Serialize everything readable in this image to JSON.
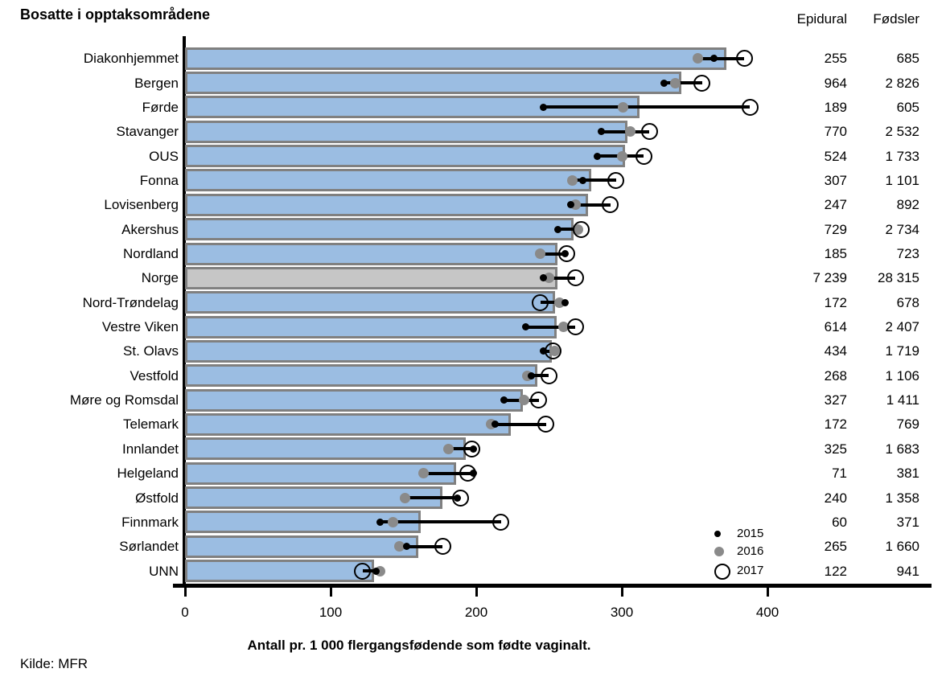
{
  "title": "Bosatte i opptaksområdene",
  "table": {
    "epidural_header": "Epidural",
    "fodsler_header": "Fødsler"
  },
  "source": "Kilde: MFR",
  "colors": {
    "bar_fill": "#9bbde2",
    "bar_border": "#808080",
    "norge_bar_fill": "#c6c6c6",
    "marker_2015": "#000000",
    "marker_2016": "#8a8a8a",
    "marker_2017_ring": "#000000",
    "axis": "#000000"
  },
  "chart_data": {
    "type": "bar",
    "orientation": "horizontal",
    "title": "Bosatte i opptaksområdene",
    "xlabel": "Antall pr. 1 000 flergangsfødende som fødte vaginalt.",
    "x_ticks": [
      0,
      100,
      200,
      300,
      400
    ],
    "xlim": [
      0,
      512
    ],
    "grid": false,
    "legend_position": "inside-bottom-right",
    "legend": [
      {
        "label": "2015",
        "marker": "small-black-dot"
      },
      {
        "label": "2016",
        "marker": "gray-dot"
      },
      {
        "label": "2017",
        "marker": "open-circle"
      }
    ],
    "bar_meaning": "Epidural pr. 1 000 flergangsfødende som fødte vaginalt (2015-2017 samlet)",
    "rows": [
      {
        "label": "Diakonhjemmet",
        "bar": 372,
        "y2015": 363,
        "y2016": 352,
        "y2017": 384,
        "epidural": "255",
        "fodsler": "685",
        "highlight": false
      },
      {
        "label": "Bergen",
        "bar": 341,
        "y2015": 329,
        "y2016": 337,
        "y2017": 355,
        "epidural": "964",
        "fodsler": "2 826",
        "highlight": false
      },
      {
        "label": "Førde",
        "bar": 312,
        "y2015": 246,
        "y2016": 301,
        "y2017": 388,
        "epidural": "189",
        "fodsler": "605",
        "highlight": false
      },
      {
        "label": "Stavanger",
        "bar": 304,
        "y2015": 286,
        "y2016": 306,
        "y2017": 319,
        "epidural": "770",
        "fodsler": "2 532",
        "highlight": false
      },
      {
        "label": "OUS",
        "bar": 302,
        "y2015": 283,
        "y2016": 300,
        "y2017": 315,
        "epidural": "524",
        "fodsler": "1 733",
        "highlight": false
      },
      {
        "label": "Fonna",
        "bar": 279,
        "y2015": 273,
        "y2016": 266,
        "y2017": 296,
        "epidural": "307",
        "fodsler": "1 101",
        "highlight": false
      },
      {
        "label": "Lovisenberg",
        "bar": 277,
        "y2015": 265,
        "y2016": 268,
        "y2017": 292,
        "epidural": "247",
        "fodsler": "892",
        "highlight": false
      },
      {
        "label": "Akershus",
        "bar": 267,
        "y2015": 256,
        "y2016": 270,
        "y2017": 272,
        "epidural": "729",
        "fodsler": "2 734",
        "highlight": false
      },
      {
        "label": "Nordland",
        "bar": 256,
        "y2015": 261,
        "y2016": 244,
        "y2017": 262,
        "epidural": "185",
        "fodsler": "723",
        "highlight": false
      },
      {
        "label": "Norge",
        "bar": 256,
        "y2015": 246,
        "y2016": 250,
        "y2017": 268,
        "epidural": "7 239",
        "fodsler": "28 315",
        "highlight": true
      },
      {
        "label": "Nord-Trøndelag",
        "bar": 254,
        "y2015": 261,
        "y2016": 257,
        "y2017": 244,
        "epidural": "172",
        "fodsler": "678",
        "highlight": false
      },
      {
        "label": "Vestre Viken",
        "bar": 255,
        "y2015": 234,
        "y2016": 260,
        "y2017": 268,
        "epidural": "614",
        "fodsler": "2 407",
        "highlight": false
      },
      {
        "label": "St. Olavs",
        "bar": 252,
        "y2015": 246,
        "y2016": 254,
        "y2017": 253,
        "epidural": "434",
        "fodsler": "1 719",
        "highlight": false
      },
      {
        "label": "Vestfold",
        "bar": 242,
        "y2015": 238,
        "y2016": 235,
        "y2017": 250,
        "epidural": "268",
        "fodsler": "1 106",
        "highlight": false
      },
      {
        "label": "Møre og Romsdal",
        "bar": 232,
        "y2015": 219,
        "y2016": 233,
        "y2017": 243,
        "epidural": "327",
        "fodsler": "1 411",
        "highlight": false
      },
      {
        "label": "Telemark",
        "bar": 224,
        "y2015": 213,
        "y2016": 210,
        "y2017": 248,
        "epidural": "172",
        "fodsler": "769",
        "highlight": false
      },
      {
        "label": "Innlandet",
        "bar": 193,
        "y2015": 198,
        "y2016": 181,
        "y2017": 197,
        "epidural": "325",
        "fodsler": "1 683",
        "highlight": false
      },
      {
        "label": "Helgeland",
        "bar": 186,
        "y2015": 198,
        "y2016": 164,
        "y2017": 194,
        "epidural": "71",
        "fodsler": "381",
        "highlight": false
      },
      {
        "label": "Østfold",
        "bar": 177,
        "y2015": 187,
        "y2016": 151,
        "y2017": 189,
        "epidural": "240",
        "fodsler": "1 358",
        "highlight": false
      },
      {
        "label": "Finnmark",
        "bar": 162,
        "y2015": 134,
        "y2016": 143,
        "y2017": 217,
        "epidural": "60",
        "fodsler": "371",
        "highlight": false
      },
      {
        "label": "Sørlandet",
        "bar": 160,
        "y2015": 152,
        "y2016": 147,
        "y2017": 177,
        "epidural": "265",
        "fodsler": "1 660",
        "highlight": false
      },
      {
        "label": "UNN",
        "bar": 130,
        "y2015": 131,
        "y2016": 134,
        "y2017": 122,
        "epidural": "122",
        "fodsler": "941",
        "highlight": false
      }
    ]
  }
}
